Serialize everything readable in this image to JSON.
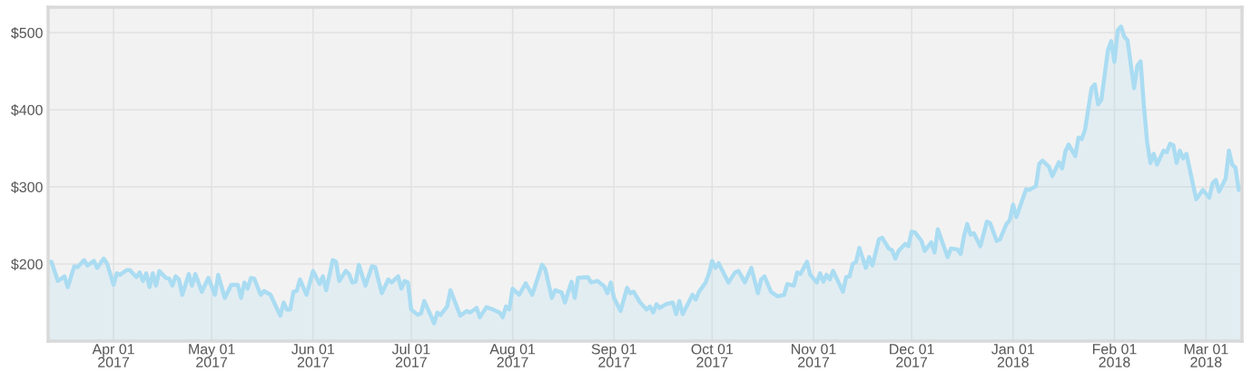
{
  "chart_data": {
    "type": "area",
    "grid": true,
    "xlim": [
      "2017-03-12",
      "2018-03-12"
    ],
    "ylim": [
      100,
      533
    ],
    "yticks": [
      {
        "value": 200,
        "label": "$200"
      },
      {
        "value": 300,
        "label": "$300"
      },
      {
        "value": 400,
        "label": "$400"
      },
      {
        "value": 500,
        "label": "$500"
      }
    ],
    "xticks": [
      {
        "value": "2017-04-01",
        "label": "Apr 01\n2017"
      },
      {
        "value": "2017-05-01",
        "label": "May 01\n2017"
      },
      {
        "value": "2017-06-01",
        "label": "Jun 01\n2017"
      },
      {
        "value": "2017-07-01",
        "label": "Jul 01\n2017"
      },
      {
        "value": "2017-08-01",
        "label": "Aug 01\n2017"
      },
      {
        "value": "2017-09-01",
        "label": "Sep 01\n2017"
      },
      {
        "value": "2017-10-01",
        "label": "Oct 01\n2017"
      },
      {
        "value": "2017-11-01",
        "label": "Nov 01\n2017"
      },
      {
        "value": "2017-12-01",
        "label": "Dec 01\n2017"
      },
      {
        "value": "2018-01-01",
        "label": "Jan 01\n2018"
      },
      {
        "value": "2018-02-01",
        "label": "Feb 01\n2018"
      },
      {
        "value": "2018-03-01",
        "label": "Mar 01\n2018"
      }
    ],
    "x": [
      "2017-03-12",
      "2017-03-13",
      "2017-03-15",
      "2017-03-17",
      "2017-03-18",
      "2017-03-20",
      "2017-03-21",
      "2017-03-23",
      "2017-03-24",
      "2017-03-26",
      "2017-03-27",
      "2017-03-29",
      "2017-03-30",
      "2017-04-01",
      "2017-04-02",
      "2017-04-03",
      "2017-04-05",
      "2017-04-06",
      "2017-04-08",
      "2017-04-09",
      "2017-04-10",
      "2017-04-11",
      "2017-04-12",
      "2017-04-13",
      "2017-04-14",
      "2017-04-15",
      "2017-04-17",
      "2017-04-18",
      "2017-04-19",
      "2017-04-20",
      "2017-04-21",
      "2017-04-22",
      "2017-04-24",
      "2017-04-25",
      "2017-04-26",
      "2017-04-28",
      "2017-04-30",
      "2017-05-02",
      "2017-05-03",
      "2017-05-05",
      "2017-05-07",
      "2017-05-09",
      "2017-05-10",
      "2017-05-11",
      "2017-05-12",
      "2017-05-13",
      "2017-05-14",
      "2017-05-16",
      "2017-05-17",
      "2017-05-19",
      "2017-05-22",
      "2017-05-23",
      "2017-05-24",
      "2017-05-25",
      "2017-05-26",
      "2017-05-27",
      "2017-05-28",
      "2017-05-30",
      "2017-06-01",
      "2017-06-03",
      "2017-06-04",
      "2017-06-05",
      "2017-06-07",
      "2017-06-08",
      "2017-06-09",
      "2017-06-11",
      "2017-06-12",
      "2017-06-13",
      "2017-06-14",
      "2017-06-15",
      "2017-06-17",
      "2017-06-19",
      "2017-06-20",
      "2017-06-22",
      "2017-06-24",
      "2017-06-25",
      "2017-06-27",
      "2017-06-28",
      "2017-06-29",
      "2017-06-30",
      "2017-07-01",
      "2017-07-03",
      "2017-07-04",
      "2017-07-05",
      "2017-07-07",
      "2017-07-08",
      "2017-07-09",
      "2017-07-10",
      "2017-07-12",
      "2017-07-13",
      "2017-07-16",
      "2017-07-18",
      "2017-07-19",
      "2017-07-21",
      "2017-07-22",
      "2017-07-24",
      "2017-07-26",
      "2017-07-28",
      "2017-07-29",
      "2017-07-30",
      "2017-07-31",
      "2017-08-01",
      "2017-08-03",
      "2017-08-05",
      "2017-08-07",
      "2017-08-10",
      "2017-08-11",
      "2017-08-13",
      "2017-08-14",
      "2017-08-16",
      "2017-08-17",
      "2017-08-19",
      "2017-08-20",
      "2017-08-21",
      "2017-08-24",
      "2017-08-25",
      "2017-08-27",
      "2017-08-29",
      "2017-08-30",
      "2017-08-31",
      "2017-09-01",
      "2017-09-03",
      "2017-09-05",
      "2017-09-06",
      "2017-09-07",
      "2017-09-09",
      "2017-09-11",
      "2017-09-12",
      "2017-09-13",
      "2017-09-14",
      "2017-09-15",
      "2017-09-17",
      "2017-09-19",
      "2017-09-20",
      "2017-09-21",
      "2017-09-22",
      "2017-09-25",
      "2017-09-26",
      "2017-09-27",
      "2017-09-29",
      "2017-09-30",
      "2017-10-01",
      "2017-10-02",
      "2017-10-03",
      "2017-10-06",
      "2017-10-08",
      "2017-10-09",
      "2017-10-10",
      "2017-10-11",
      "2017-10-13",
      "2017-10-15",
      "2017-10-16",
      "2017-10-17",
      "2017-10-19",
      "2017-10-21",
      "2017-10-23",
      "2017-10-24",
      "2017-10-26",
      "2017-10-27",
      "2017-10-28",
      "2017-10-30",
      "2017-10-31",
      "2017-11-02",
      "2017-11-03",
      "2017-11-04",
      "2017-11-05",
      "2017-11-06",
      "2017-11-07",
      "2017-11-10",
      "2017-11-11",
      "2017-11-12",
      "2017-11-13",
      "2017-11-14",
      "2017-11-15",
      "2017-11-17",
      "2017-11-18",
      "2017-11-19",
      "2017-11-21",
      "2017-11-22",
      "2017-11-24",
      "2017-11-25",
      "2017-11-26",
      "2017-11-27",
      "2017-11-29",
      "2017-11-30",
      "2017-12-01",
      "2017-12-02",
      "2017-12-04",
      "2017-12-05",
      "2017-12-07",
      "2017-12-08",
      "2017-12-09",
      "2017-12-12",
      "2017-12-13",
      "2017-12-15",
      "2017-12-16",
      "2017-12-17",
      "2017-12-18",
      "2017-12-19",
      "2017-12-20",
      "2017-12-22",
      "2017-12-24",
      "2017-12-25",
      "2017-12-27",
      "2017-12-28",
      "2017-12-30",
      "2017-12-31",
      "2018-01-01",
      "2018-01-02",
      "2018-01-05",
      "2018-01-06",
      "2018-01-08",
      "2018-01-09",
      "2018-01-10",
      "2018-01-12",
      "2018-01-13",
      "2018-01-15",
      "2018-01-16",
      "2018-01-17",
      "2018-01-18",
      "2018-01-20",
      "2018-01-21",
      "2018-01-22",
      "2018-01-23",
      "2018-01-25",
      "2018-01-26",
      "2018-01-27",
      "2018-01-28",
      "2018-01-30",
      "2018-01-31",
      "2018-02-01",
      "2018-02-02",
      "2018-02-03",
      "2018-02-04",
      "2018-02-05",
      "2018-02-07",
      "2018-02-08",
      "2018-02-09",
      "2018-02-10",
      "2018-02-11",
      "2018-02-12",
      "2018-02-13",
      "2018-02-14",
      "2018-02-16",
      "2018-02-17",
      "2018-02-18",
      "2018-02-19",
      "2018-02-20",
      "2018-02-21",
      "2018-02-22",
      "2018-02-23",
      "2018-02-26",
      "2018-02-28",
      "2018-03-02",
      "2018-03-03",
      "2018-03-04",
      "2018-03-05",
      "2018-03-07",
      "2018-03-08",
      "2018-03-09",
      "2018-03-10",
      "2018-03-11",
      "2018-03-12"
    ],
    "series": [
      {
        "color": "#aadcf2",
        "values": [
          202,
          203,
          178,
          184,
          170,
          197,
          196,
          205,
          198,
          204,
          195,
          207,
          201,
          173,
          188,
          186,
          192,
          192,
          183,
          189,
          178,
          188,
          170,
          188,
          172,
          191,
          182,
          181,
          172,
          184,
          180,
          160,
          187,
          172,
          187,
          164,
          182,
          160,
          186,
          156,
          173,
          173,
          156,
          176,
          168,
          182,
          181,
          160,
          165,
          160,
          133,
          150,
          141,
          141,
          164,
          165,
          180,
          160,
          191,
          174,
          184,
          166,
          205,
          203,
          178,
          191,
          187,
          176,
          177,
          199,
          172,
          197,
          196,
          162,
          180,
          176,
          184,
          168,
          178,
          176,
          141,
          134,
          136,
          152,
          133,
          123,
          137,
          134,
          145,
          166,
          133,
          139,
          137,
          143,
          131,
          144,
          141,
          137,
          131,
          145,
          141,
          168,
          160,
          175,
          160,
          199,
          193,
          156,
          166,
          163,
          150,
          177,
          156,
          182,
          183,
          176,
          178,
          171,
          162,
          176,
          156,
          139,
          169,
          162,
          164,
          150,
          141,
          145,
          137,
          148,
          143,
          148,
          150,
          135,
          152,
          135,
          160,
          154,
          164,
          176,
          187,
          204,
          195,
          201,
          176,
          189,
          191,
          184,
          176,
          195,
          162,
          180,
          184,
          164,
          158,
          160,
          174,
          172,
          189,
          187,
          203,
          186,
          176,
          188,
          177,
          186,
          180,
          191,
          164,
          183,
          184,
          200,
          203,
          221,
          195,
          209,
          198,
          232,
          234,
          220,
          218,
          207,
          217,
          226,
          223,
          242,
          241,
          230,
          217,
          228,
          215,
          245,
          209,
          220,
          219,
          213,
          236,
          252,
          238,
          240,
          223,
          255,
          253,
          230,
          232,
          252,
          257,
          277,
          261,
          297,
          296,
          301,
          330,
          334,
          326,
          314,
          332,
          324,
          346,
          355,
          340,
          364,
          362,
          374,
          428,
          433,
          407,
          413,
          477,
          489,
          462,
          503,
          508,
          495,
          490,
          428,
          457,
          463,
          405,
          358,
          331,
          343,
          329,
          347,
          345,
          356,
          354,
          331,
          347,
          337,
          343,
          284,
          296,
          286,
          305,
          309,
          294,
          311,
          347,
          329,
          325,
          296,
          300
        ]
      }
    ]
  }
}
